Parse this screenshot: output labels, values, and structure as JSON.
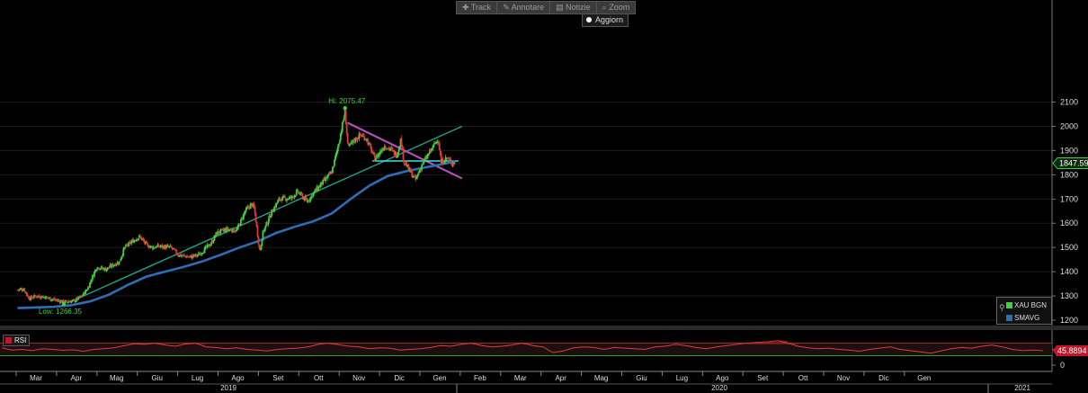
{
  "toolbar": {
    "items": [
      {
        "label": "Track",
        "icon": "plus-icon"
      },
      {
        "label": "Annotare",
        "icon": "pencil-icon"
      },
      {
        "label": "Notizie",
        "icon": "news-icon"
      },
      {
        "label": "Zoom",
        "icon": "magnifier-icon"
      }
    ],
    "refresh_label": "Aggiorn"
  },
  "legend": {
    "items": [
      {
        "label": "XAU BGN",
        "color": "#3fd13f"
      },
      {
        "label": "SMAVG",
        "color": "#2f6db5"
      }
    ]
  },
  "rsi_panel": {
    "label": "RSI",
    "value_label": "45.8894",
    "color": "#e03a3a"
  },
  "colors": {
    "up": "#3fd13f",
    "down": "#e03a3a",
    "sma": "#2f6db5",
    "trend": "#1aa38c",
    "resistance": "#c050c0",
    "support": "#40e0e0"
  },
  "chart_data": [
    {
      "type": "candlestick",
      "instrument": "XAU BGN",
      "x_ticks": [
        "Mar",
        "Apr",
        "Mag",
        "Giu",
        "Lug",
        "Ago",
        "Set",
        "Ott",
        "Nov",
        "Dic",
        "Gen",
        "Feb",
        "Mar",
        "Apr",
        "Mag",
        "Giu",
        "Lug",
        "Ago",
        "Set",
        "Ott",
        "Nov",
        "Dic",
        "Gen"
      ],
      "years": [
        "2019",
        "2020",
        "2021"
      ],
      "y_ticks": [
        1200,
        1300,
        1400,
        1500,
        1600,
        1700,
        1800,
        1900,
        2000,
        2100
      ],
      "ylim": [
        1160,
        2130
      ],
      "last_price_label": "1847.59",
      "annotations": [
        {
          "text": "Hi: 2075.47",
          "value": 2075.47,
          "date": "2020-08-06"
        },
        {
          "text": "Low: 1266.35",
          "value": 1266.35,
          "date": "2019-05-02"
        }
      ],
      "close_path": [
        [
          "2019-02-15",
          1325
        ],
        [
          "2019-02-25",
          1330
        ],
        [
          "2019-03-06",
          1290
        ],
        [
          "2019-03-18",
          1300
        ],
        [
          "2019-04-02",
          1295
        ],
        [
          "2019-04-15",
          1285
        ],
        [
          "2019-05-02",
          1275
        ],
        [
          "2019-05-20",
          1280
        ],
        [
          "2019-06-01",
          1300
        ],
        [
          "2019-06-10",
          1330
        ],
        [
          "2019-06-20",
          1390
        ],
        [
          "2019-06-25",
          1420
        ],
        [
          "2019-07-10",
          1410
        ],
        [
          "2019-07-20",
          1425
        ],
        [
          "2019-08-01",
          1440
        ],
        [
          "2019-08-10",
          1500
        ],
        [
          "2019-08-25",
          1530
        ],
        [
          "2019-09-04",
          1545
        ],
        [
          "2019-09-15",
          1510
        ],
        [
          "2019-09-25",
          1500
        ],
        [
          "2019-10-05",
          1505
        ],
        [
          "2019-10-25",
          1500
        ],
        [
          "2019-11-06",
          1470
        ],
        [
          "2019-11-25",
          1460
        ],
        [
          "2019-12-10",
          1470
        ],
        [
          "2019-12-31",
          1520
        ],
        [
          "2020-01-08",
          1560
        ],
        [
          "2020-01-25",
          1575
        ],
        [
          "2020-02-10",
          1570
        ],
        [
          "2020-02-24",
          1650
        ],
        [
          "2020-03-06",
          1680
        ],
        [
          "2020-03-10",
          1660
        ],
        [
          "2020-03-19",
          1480
        ],
        [
          "2020-03-24",
          1560
        ],
        [
          "2020-04-08",
          1650
        ],
        [
          "2020-04-20",
          1700
        ],
        [
          "2020-05-10",
          1705
        ],
        [
          "2020-05-20",
          1730
        ],
        [
          "2020-06-05",
          1690
        ],
        [
          "2020-06-20",
          1740
        ],
        [
          "2020-07-01",
          1770
        ],
        [
          "2020-07-15",
          1810
        ],
        [
          "2020-07-24",
          1900
        ],
        [
          "2020-08-06",
          2060
        ],
        [
          "2020-08-11",
          1910
        ],
        [
          "2020-08-20",
          1940
        ],
        [
          "2020-08-31",
          1965
        ],
        [
          "2020-09-10",
          1950
        ],
        [
          "2020-09-24",
          1865
        ],
        [
          "2020-10-10",
          1920
        ],
        [
          "2020-10-20",
          1905
        ],
        [
          "2020-10-30",
          1880
        ],
        [
          "2020-11-06",
          1950
        ],
        [
          "2020-11-10",
          1860
        ],
        [
          "2020-11-24",
          1800
        ],
        [
          "2020-11-30",
          1780
        ],
        [
          "2020-12-10",
          1840
        ],
        [
          "2020-12-20",
          1880
        ],
        [
          "2021-01-06",
          1950
        ],
        [
          "2021-01-11",
          1850
        ],
        [
          "2021-01-20",
          1870
        ],
        [
          "2021-01-28",
          1850
        ],
        [
          "2021-02-03",
          1847.59
        ]
      ],
      "sma_path": [
        [
          "2019-02-15",
          1250
        ],
        [
          "2019-04-15",
          1255
        ],
        [
          "2019-05-15",
          1262
        ],
        [
          "2019-06-15",
          1278
        ],
        [
          "2019-07-15",
          1305
        ],
        [
          "2019-08-15",
          1345
        ],
        [
          "2019-09-15",
          1380
        ],
        [
          "2019-10-15",
          1400
        ],
        [
          "2019-11-15",
          1420
        ],
        [
          "2019-12-15",
          1442
        ],
        [
          "2020-01-15",
          1470
        ],
        [
          "2020-02-15",
          1500
        ],
        [
          "2020-03-15",
          1525
        ],
        [
          "2020-04-15",
          1560
        ],
        [
          "2020-05-15",
          1585
        ],
        [
          "2020-06-15",
          1608
        ],
        [
          "2020-07-15",
          1640
        ],
        [
          "2020-08-15",
          1700
        ],
        [
          "2020-09-15",
          1755
        ],
        [
          "2020-10-15",
          1795
        ],
        [
          "2020-11-15",
          1815
        ],
        [
          "2020-12-15",
          1830
        ],
        [
          "2021-01-15",
          1845
        ],
        [
          "2021-02-03",
          1855
        ]
      ],
      "trendlines": [
        {
          "name": "rising",
          "from": [
            "2019-05-15",
            1278
          ],
          "to": [
            "2021-02-14",
            2000
          ]
        },
        {
          "name": "falling",
          "from": [
            "2020-08-10",
            2015
          ],
          "to": [
            "2021-02-14",
            1785
          ]
        },
        {
          "name": "support",
          "from": [
            "2020-09-20",
            1857
          ],
          "to": [
            "2021-02-08",
            1857
          ]
        }
      ]
    },
    {
      "type": "line",
      "instrument": "RSI",
      "ylim": [
        0,
        100
      ],
      "y_ticks": [
        0,
        50
      ],
      "bands": [
        30,
        70
      ],
      "last_value_label": "45.8894",
      "values": [
        55,
        48,
        50,
        46,
        52,
        50,
        47,
        49,
        44,
        50,
        52,
        55,
        62,
        68,
        66,
        70,
        64,
        60,
        67,
        70,
        58,
        56,
        52,
        55,
        50,
        48,
        45,
        50,
        52,
        54,
        58,
        66,
        70,
        65,
        60,
        58,
        52,
        55,
        54,
        48,
        50,
        52,
        56,
        62,
        60,
        66,
        70,
        62,
        58,
        60,
        64,
        70,
        62,
        58,
        40,
        45,
        55,
        58,
        56,
        50,
        56,
        54,
        52,
        50,
        58,
        60,
        66,
        62,
        56,
        52,
        58,
        62,
        66,
        70,
        72,
        74,
        78,
        70,
        60,
        55,
        52,
        54,
        50,
        48,
        44,
        50,
        54,
        58,
        50,
        46,
        42,
        38,
        45,
        52,
        56,
        54,
        60,
        64,
        58,
        50,
        46,
        48,
        45.89
      ]
    }
  ]
}
